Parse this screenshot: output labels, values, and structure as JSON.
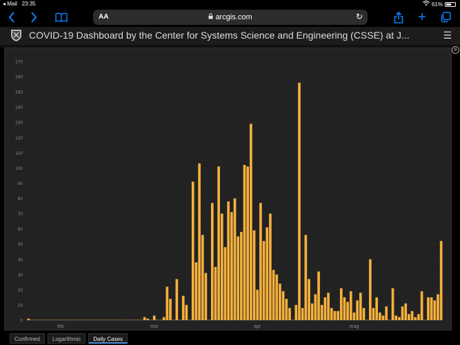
{
  "status": {
    "back_app": "Mail",
    "time": "23:35",
    "battery": "61%",
    "battery_level": 0.61
  },
  "browser": {
    "aa_label": "AA",
    "url": "arcgis.com"
  },
  "page": {
    "title": "COVID-19 Dashboard by the Center for Systems Science and Engineering (CSSE) at J..."
  },
  "tabs": [
    {
      "label": "Confirmed",
      "active": false
    },
    {
      "label": "Logarithmic",
      "active": false
    },
    {
      "label": "Daily Cases",
      "active": true
    }
  ],
  "colors": {
    "bar": "#f5b03c",
    "panel": "#222222",
    "grid": "#3a3a3a",
    "accent": "#0a84ff"
  },
  "chart_data": {
    "type": "bar",
    "title": "",
    "xlabel": "",
    "ylabel": "",
    "ylim": [
      0,
      170
    ],
    "yticks": [
      0,
      10,
      20,
      30,
      40,
      50,
      60,
      70,
      80,
      90,
      100,
      110,
      120,
      130,
      140,
      150,
      160,
      170
    ],
    "grid": true,
    "month_labels": [
      {
        "label": "feb",
        "index": 10
      },
      {
        "label": "mar",
        "index": 39
      },
      {
        "label": "apr",
        "index": 71
      },
      {
        "label": "mag",
        "index": 101
      }
    ],
    "categories_start": "2020-01-22",
    "values": [
      1,
      0,
      0,
      0,
      0,
      0,
      0,
      0,
      0,
      0,
      0,
      0,
      0,
      0,
      0,
      0,
      0,
      0,
      0,
      0,
      0,
      0,
      0,
      0,
      0,
      0,
      0,
      0,
      0,
      0,
      0,
      0,
      0,
      0,
      0,
      0,
      2,
      1,
      0,
      3,
      0,
      0,
      2,
      22,
      14,
      0,
      27,
      0,
      16,
      10,
      0,
      91,
      38,
      103,
      56,
      31,
      0,
      77,
      35,
      101,
      70,
      48,
      78,
      71,
      80,
      55,
      58,
      102,
      101,
      129,
      59,
      20,
      77,
      52,
      61,
      70,
      33,
      30,
      24,
      19,
      14,
      8,
      0,
      10,
      156,
      8,
      56,
      27,
      11,
      17,
      32,
      10,
      15,
      18,
      8,
      6,
      6,
      21,
      15,
      12,
      19,
      5,
      13,
      18,
      8,
      0,
      40,
      8,
      15,
      5,
      3,
      9,
      0,
      21,
      3,
      2,
      9,
      11,
      4,
      6,
      2,
      4,
      19,
      0,
      15,
      15,
      13,
      17,
      52
    ]
  }
}
